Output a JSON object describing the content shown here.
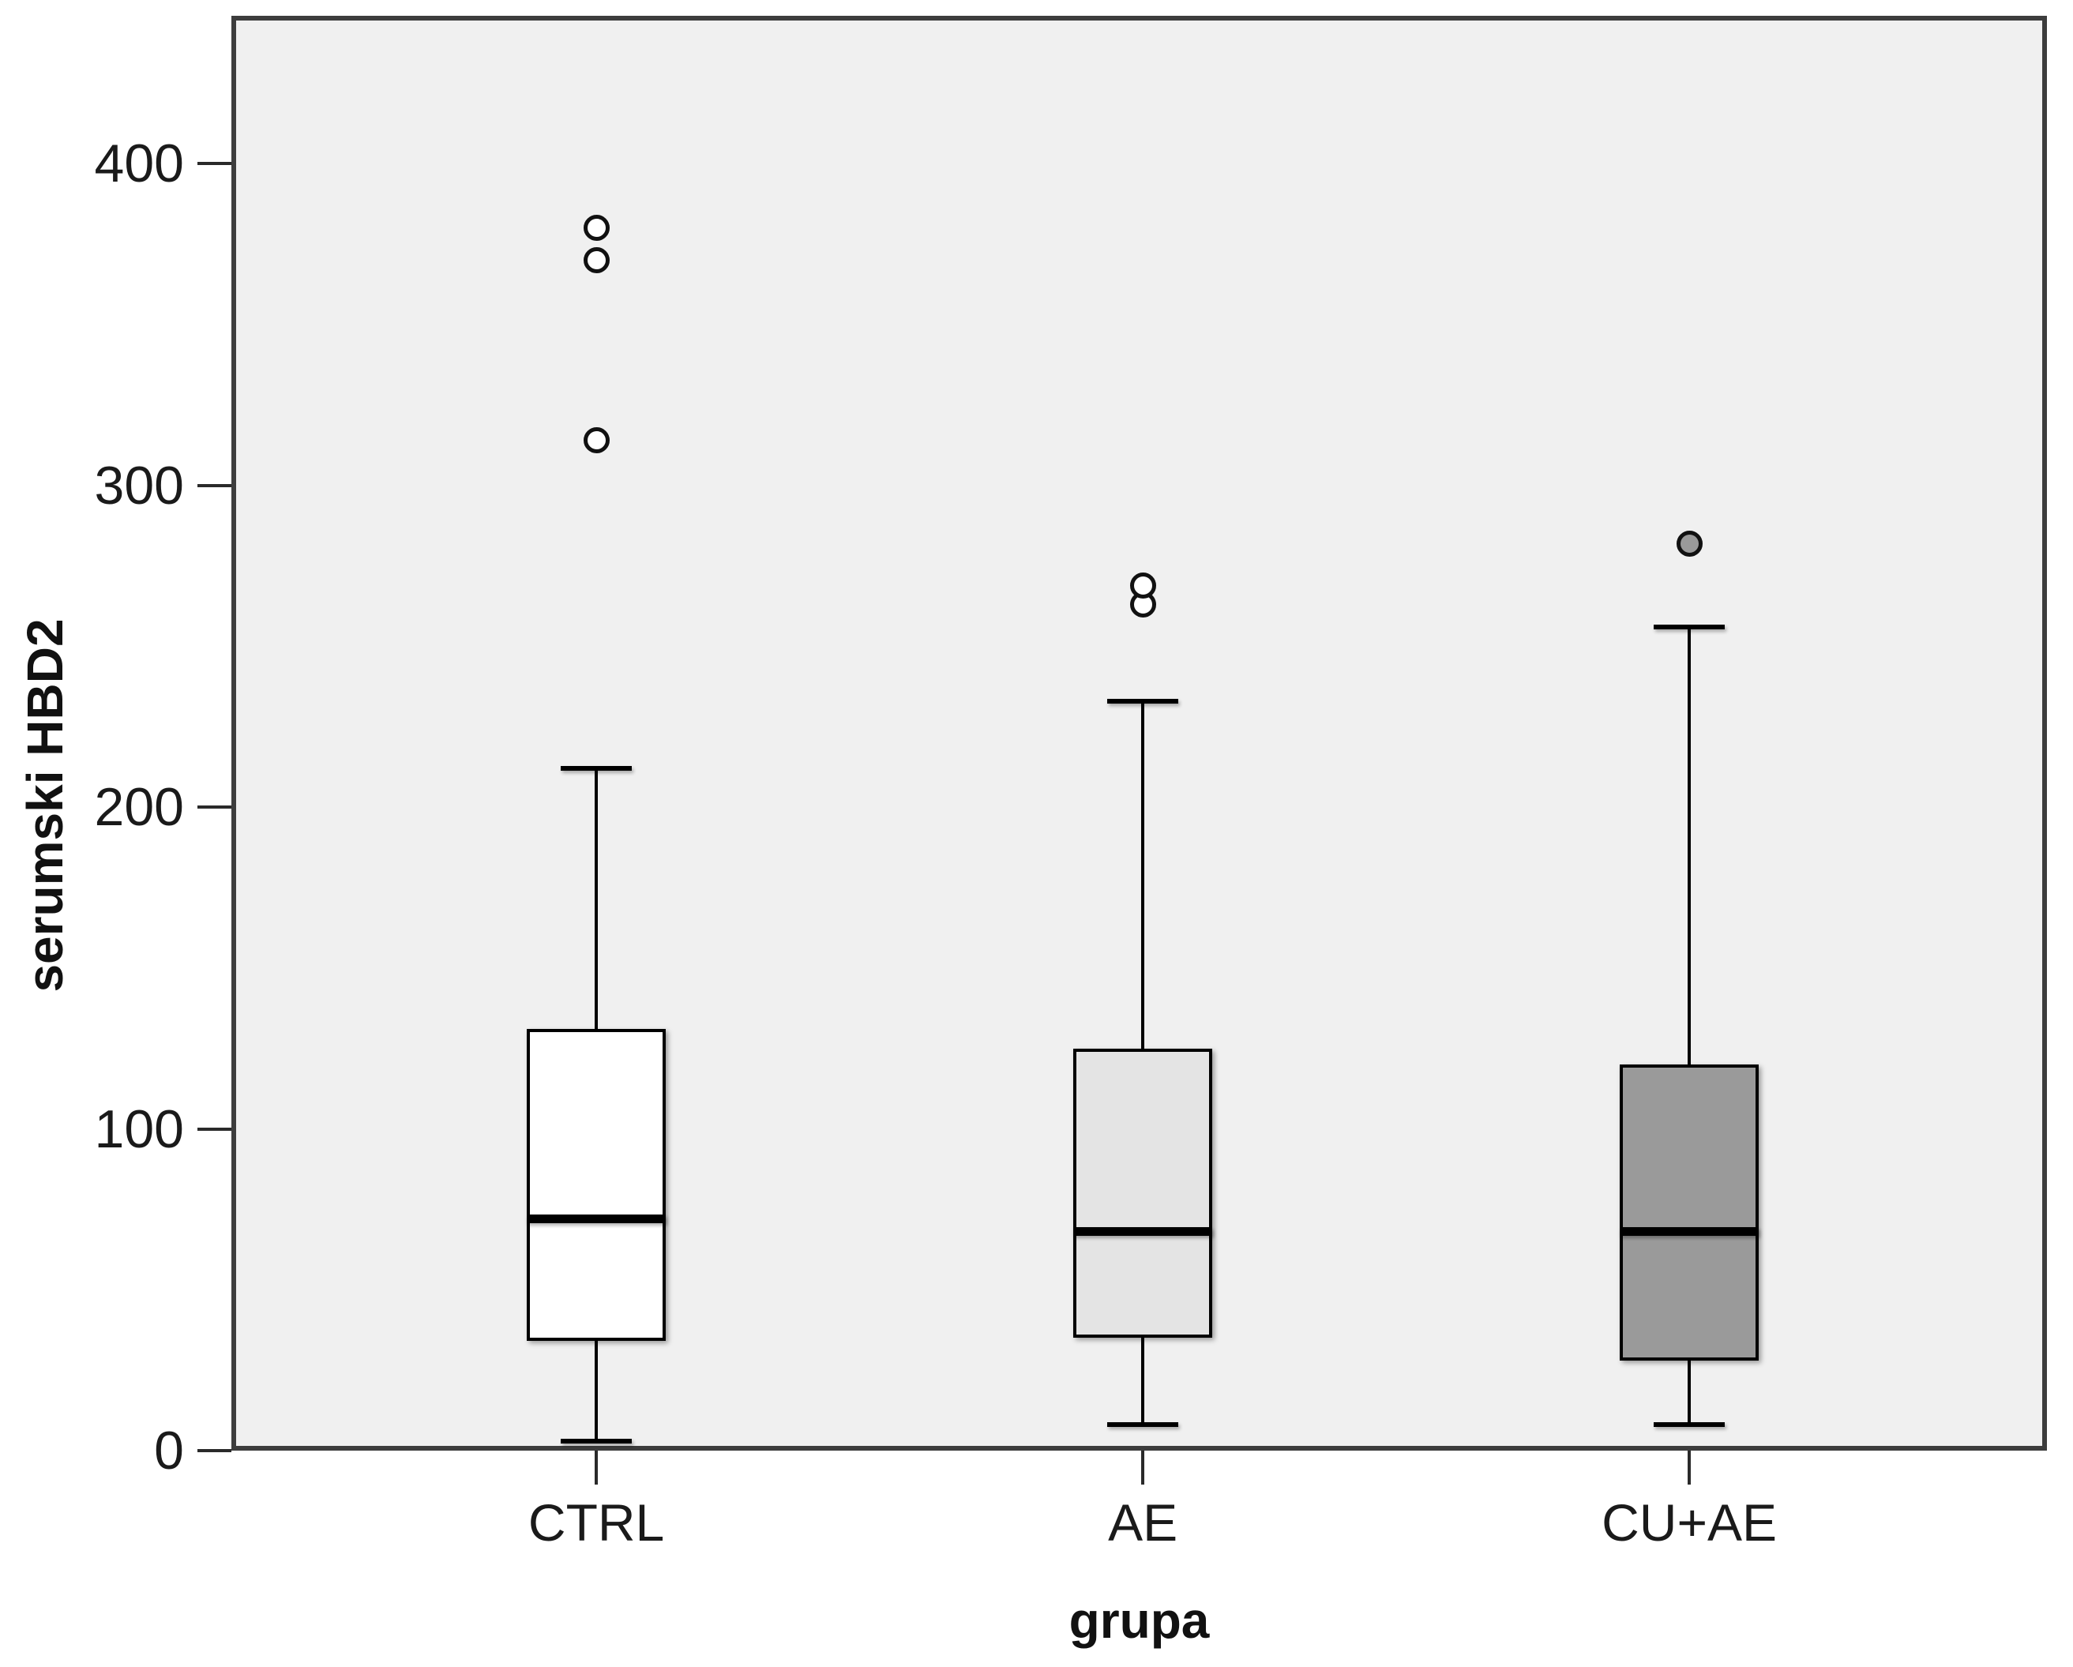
{
  "chart_data": {
    "type": "boxplot",
    "title": "",
    "xlabel": "grupa",
    "ylabel": "serumski HBD2",
    "ylim": [
      0,
      446
    ],
    "y_ticks": [
      0,
      100,
      200,
      300,
      400
    ],
    "grid": false,
    "legend": "none",
    "categories": [
      "CTRL",
      "AE",
      "CU+AE"
    ],
    "series": [
      {
        "category": "CTRL",
        "whisker_low": 3,
        "q1": 34,
        "median": 72,
        "q3": 131,
        "whisker_high": 212,
        "outliers": [
          314,
          370,
          380
        ],
        "box_fill": "#ffffff",
        "outlier_fill": "#ffffff"
      },
      {
        "category": "AE",
        "whisker_low": 8,
        "q1": 35,
        "median": 68,
        "q3": 125,
        "whisker_high": 233,
        "outliers": [
          263,
          269
        ],
        "box_fill": "#e4e4e4",
        "outlier_fill": "#ffffff"
      },
      {
        "category": "CU+AE",
        "whisker_low": 8,
        "q1": 28,
        "median": 68,
        "q3": 120,
        "whisker_high": 256,
        "outliers": [
          282
        ],
        "box_fill": "#9a9a9a",
        "outlier_fill": "#9a9a9a"
      }
    ],
    "colors": {
      "plot_background": "#f0f0f0",
      "frame_border": "#3d3d3d",
      "line": "#000000",
      "tick_label": "#1a1a1a"
    }
  }
}
